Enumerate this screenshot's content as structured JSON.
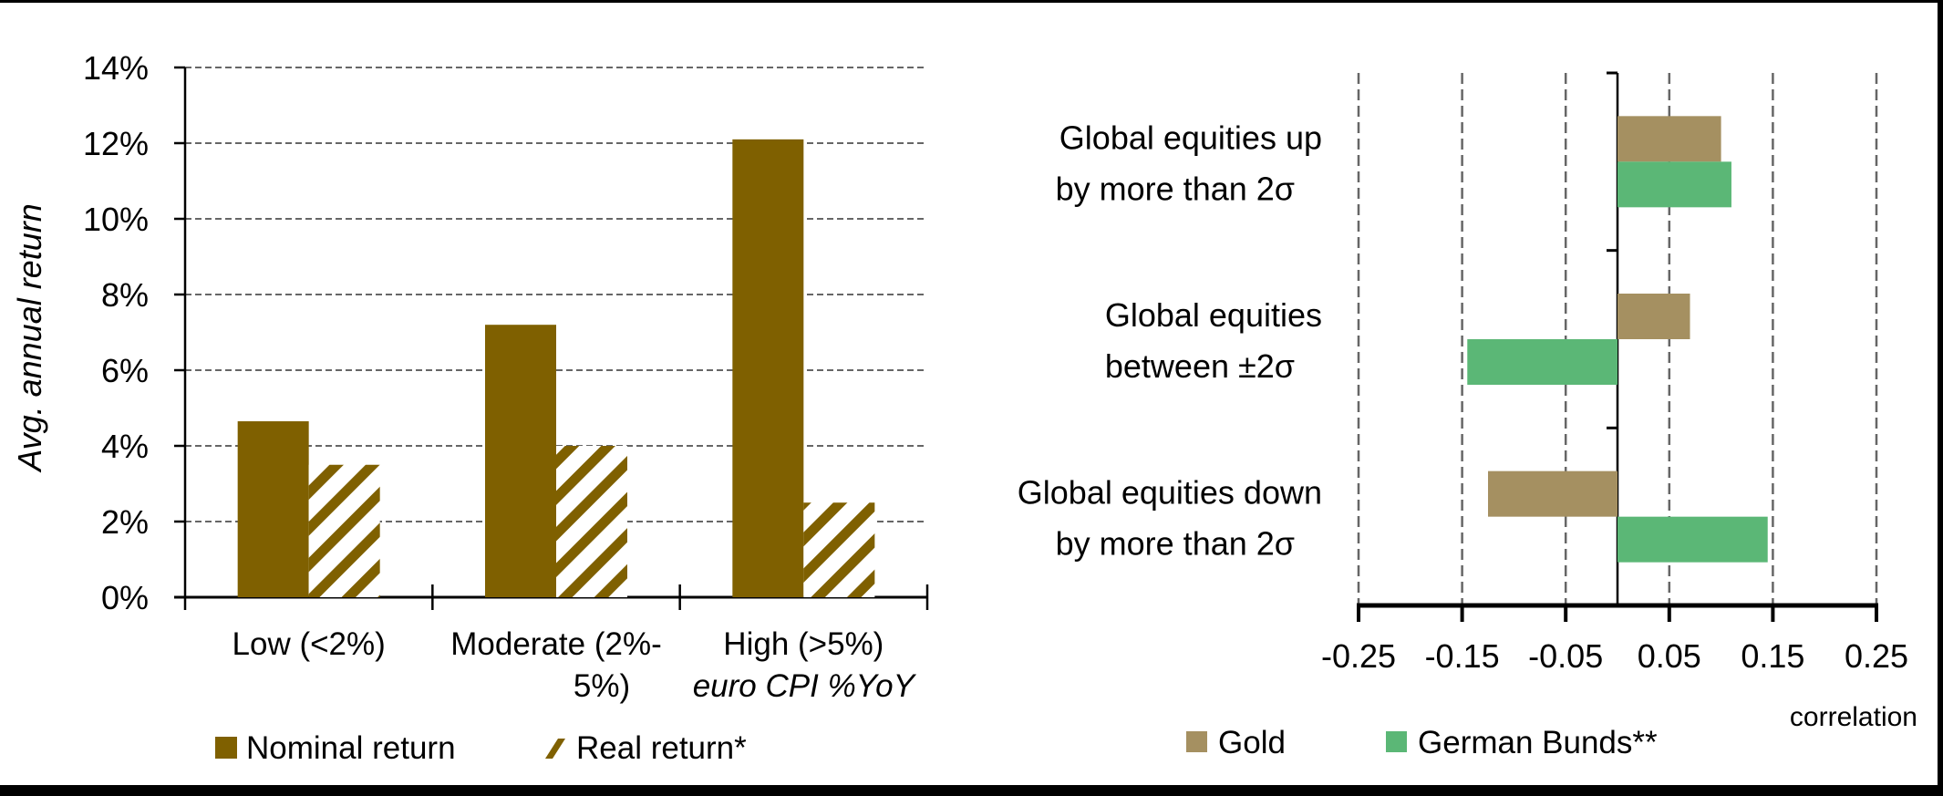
{
  "chart_data": [
    {
      "type": "bar",
      "title": "",
      "ylabel": "Avg. annual return",
      "xlabel": "euro CPI %YoY",
      "ylim": [
        0,
        14
      ],
      "yticks": [
        "0%",
        "2%",
        "4%",
        "6%",
        "8%",
        "10%",
        "12%",
        "14%"
      ],
      "grid": true,
      "categories": [
        "Low (<2%)",
        "Moderate (2%-5%)",
        "High (>5%)"
      ],
      "category_lines": [
        [
          "Low (<2%)"
        ],
        [
          "Moderate (2%-",
          "5%)"
        ],
        [
          "High (>5%)"
        ]
      ],
      "series": [
        {
          "name": "Nominal return",
          "values": [
            4.65,
            7.2,
            12.1
          ],
          "color": "#7F6000",
          "pattern": "solid"
        },
        {
          "name": "Real return*",
          "values": [
            3.5,
            4.0,
            2.5
          ],
          "color": "#7F6000",
          "pattern": "diagonal-hatch"
        }
      ],
      "legend_position": "bottom"
    },
    {
      "type": "bar",
      "orientation": "horizontal",
      "title": "",
      "xlabel": "correlation",
      "ylabel": "",
      "xlim": [
        -0.25,
        0.25
      ],
      "xticks": [
        "-0.25",
        "-0.15",
        "-0.05",
        "0.05",
        "0.15",
        "0.25"
      ],
      "grid": true,
      "categories": [
        "Global equities up by more than 2σ",
        "Global equities between ±2σ",
        "Global equities down by more than 2σ"
      ],
      "category_lines": [
        [
          "Global equities up",
          "by more than 2σ"
        ],
        [
          "Global equities",
          "between ±2σ"
        ],
        [
          "Global equities down",
          "by more than 2σ"
        ]
      ],
      "series": [
        {
          "name": "Gold",
          "values": [
            0.1,
            0.07,
            -0.125
          ],
          "color": "#A59061"
        },
        {
          "name": "German Bunds**",
          "values": [
            0.11,
            -0.145,
            0.145
          ],
          "color": "#5BB776"
        }
      ],
      "legend_position": "bottom"
    }
  ],
  "left": {
    "ylabel": "Avg. annual return",
    "xnote": "euro CPI %YoY",
    "legend": [
      "Nominal return",
      "Real return*"
    ]
  },
  "right": {
    "xlabel": "correlation",
    "legend": [
      "Gold",
      "German Bunds**"
    ]
  }
}
